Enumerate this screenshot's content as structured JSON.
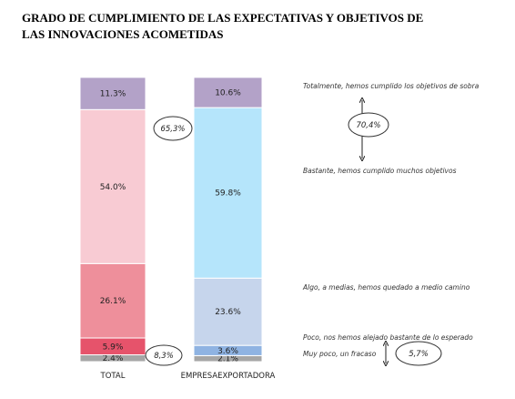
{
  "chart_data": {
    "type": "stacked_bar",
    "title": [
      "GRADO DE CUMPLIMIENTO DE LAS EXPECTATIVAS Y OBJETIVOS DE",
      "LAS INNOVACIONES ACOMETIDAS"
    ],
    "categories": [
      "TOTAL",
      "EMPRESAEXPORTADORA"
    ],
    "series": [
      {
        "name": "Totalmente, hemos cumplido los objetivos de sobra",
        "colors": [
          "#b3a2c8",
          "#b3a2c8"
        ],
        "values": [
          11.3,
          10.6
        ],
        "value_labels": [
          "11.3%",
          "10.6%"
        ]
      },
      {
        "name": "Bastante, hemos cumplido muchos objetivos",
        "colors": [
          "#f8cbd3",
          "#b5e5fb"
        ],
        "values": [
          54.0,
          59.8
        ],
        "value_labels": [
          "54.0%",
          "59.8%"
        ]
      },
      {
        "name": "Algo, a medias, hemos quedado a medio camino",
        "colors": [
          "#ee8f9b",
          "#c6d5ec"
        ],
        "values": [
          26.1,
          23.6
        ],
        "value_labels": [
          "26.1%",
          "23.6%"
        ]
      },
      {
        "name": "Poco, nos hemos alejado bastante de lo esperado",
        "colors": [
          "#e6536b",
          "#8fb3e2"
        ],
        "values": [
          5.9,
          3.6
        ],
        "value_labels": [
          "5.9%",
          "3.6%"
        ]
      },
      {
        "name": "Muy poco, un fracaso",
        "colors": [
          "#a6a6a6",
          "#a6a6a6"
        ],
        "values": [
          2.4,
          2.1
        ],
        "value_labels": [
          "2.4%",
          "2.1%"
        ]
      }
    ],
    "annotations": [
      "65,3%",
      "8,3%",
      "70,4%",
      "5,7%"
    ]
  }
}
